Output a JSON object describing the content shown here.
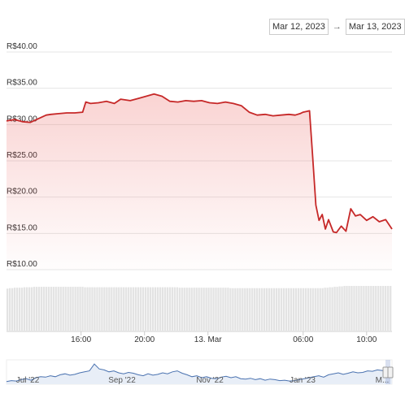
{
  "range": {
    "from": "Mar 12, 2023",
    "arrow": "→",
    "to": "Mar 13, 2023"
  },
  "chart_data": [
    {
      "type": "area",
      "title": "",
      "xlabel": "",
      "ylabel": "",
      "ylim": [
        10,
        40
      ],
      "y_ticks": [
        "R$40.00",
        "R$35.00",
        "R$30.00",
        "R$25.00",
        "R$20.00",
        "R$15.00",
        "R$10.00"
      ],
      "y_tick_values": [
        40,
        35,
        30,
        25,
        20,
        15,
        10
      ],
      "x_ticks": [
        "16:00",
        "20:00",
        "13. Mar",
        "06:00",
        "10:00"
      ],
      "x_tick_hours": [
        16,
        20,
        24,
        30,
        34
      ],
      "xlim_hours": [
        11.3,
        35.6
      ],
      "grid": true,
      "line_color": "#c62828",
      "fill_color": "#e53935",
      "series": [
        {
          "x_hours": [
            11.3,
            11.8,
            12.3,
            12.8,
            13.3,
            13.8,
            14.1,
            14.6,
            15.1,
            15.6,
            16.1,
            16.3,
            16.6,
            17.1,
            17.6,
            18.1,
            18.5,
            19.1,
            19.6,
            20.1,
            20.6,
            21.1,
            21.6,
            22.1,
            22.6,
            23.1,
            23.6,
            24.1,
            24.6,
            25.1,
            25.6,
            26.1,
            26.6,
            27.1,
            27.6,
            28.1,
            28.6,
            29.1,
            29.5,
            29.8,
            30.0,
            30.2,
            30.4,
            30.6,
            30.8,
            31.0,
            31.2,
            31.4,
            31.6,
            31.9,
            32.1,
            32.4,
            32.7,
            33.0,
            33.3,
            33.6,
            34.0,
            34.4,
            34.8,
            35.2,
            35.6
          ],
          "values": [
            30.5,
            30.7,
            30.4,
            30.3,
            30.8,
            31.3,
            31.4,
            31.5,
            31.6,
            31.6,
            31.7,
            33.1,
            32.9,
            33.0,
            33.2,
            32.9,
            33.5,
            33.3,
            33.6,
            33.9,
            34.2,
            33.9,
            33.2,
            33.1,
            33.3,
            33.2,
            33.3,
            33.0,
            32.9,
            33.1,
            32.9,
            32.6,
            31.7,
            31.3,
            31.4,
            31.2,
            31.3,
            31.4,
            31.3,
            31.5,
            31.7,
            31.8,
            31.9,
            25.5,
            18.9,
            16.8,
            17.6,
            15.6,
            16.9,
            15.2,
            15.1,
            16.0,
            15.3,
            18.4,
            17.4,
            17.6,
            16.8,
            17.3,
            16.6,
            16.9,
            15.6
          ]
        }
      ]
    },
    {
      "type": "bar",
      "title": "",
      "series": [
        {
          "name": "",
          "values": [
            0.94,
            0.95,
            0.95,
            0.96,
            0.96,
            0.96,
            0.96,
            0.97,
            0.97,
            0.97,
            0.97,
            0.98,
            0.98,
            0.98,
            0.98,
            0.98,
            0.98,
            0.98,
            0.98,
            0.98,
            0.98,
            0.98,
            0.98,
            0.98,
            0.98,
            0.98,
            0.98,
            0.98,
            0.98,
            0.98,
            0.98,
            0.98,
            0.97,
            0.97,
            0.97,
            0.97,
            0.97,
            0.97,
            0.97,
            0.97,
            0.97,
            0.97,
            0.97,
            0.97,
            0.97,
            0.97,
            0.97,
            0.97,
            0.97,
            0.97,
            0.97,
            0.97,
            0.97,
            0.97,
            0.97,
            0.97,
            0.97,
            0.97,
            0.97,
            0.97,
            0.97,
            0.97,
            0.97,
            0.97,
            0.97,
            0.97,
            0.97,
            0.97,
            0.97,
            0.97,
            0.97,
            0.96,
            0.96,
            0.96,
            0.96,
            0.96,
            0.96,
            0.96,
            0.96,
            0.96,
            0.96,
            0.96,
            0.96,
            0.96,
            0.96,
            0.96,
            0.96,
            0.96,
            0.96,
            0.96,
            0.96,
            0.96,
            0.95,
            0.95,
            0.95,
            0.95,
            0.95,
            0.95,
            0.95,
            0.95,
            0.95,
            0.95,
            0.95,
            0.95,
            0.95,
            0.95,
            0.95,
            0.95,
            0.95,
            0.95,
            0.95,
            0.95,
            0.95,
            0.95,
            0.95,
            0.95,
            0.95,
            0.95,
            0.95,
            0.95,
            0.95,
            0.95,
            0.95,
            0.95,
            0.95,
            0.95,
            0.95,
            0.95,
            0.95,
            0.95,
            0.95,
            0.96,
            0.96,
            0.97,
            0.97,
            0.98,
            0.98,
            0.99,
            0.99,
            1.0,
            1.0,
            1.0,
            1.0,
            1.0,
            1.0,
            1.0,
            1.0,
            1.0,
            1.0,
            1.0,
            1.0,
            1.0,
            1.0,
            1.0,
            1.0,
            1.0,
            1.0,
            1.0,
            1.0
          ]
        }
      ]
    },
    {
      "type": "line",
      "title": "",
      "x_ticks": [
        "Jul '22",
        "Sep '22",
        "Nov '22",
        "Jan '23",
        "M..."
      ],
      "series": [
        {
          "name": "",
          "values": [
            0.05,
            0.1,
            0.08,
            0.15,
            0.2,
            0.12,
            0.25,
            0.3,
            0.28,
            0.35,
            0.3,
            0.4,
            0.45,
            0.38,
            0.42,
            0.5,
            0.55,
            0.6,
            0.95,
            0.7,
            0.65,
            0.55,
            0.6,
            0.5,
            0.45,
            0.52,
            0.48,
            0.4,
            0.35,
            0.45,
            0.38,
            0.42,
            0.5,
            0.45,
            0.55,
            0.6,
            0.48,
            0.4,
            0.3,
            0.35,
            0.25,
            0.3,
            0.22,
            0.2,
            0.28,
            0.32,
            0.25,
            0.3,
            0.2,
            0.18,
            0.22,
            0.15,
            0.2,
            0.12,
            0.18,
            0.15,
            0.1,
            0.12,
            0.08,
            0.1,
            0.15,
            0.2,
            0.25,
            0.3,
            0.35,
            0.28,
            0.4,
            0.45,
            0.5,
            0.42,
            0.48,
            0.55,
            0.5,
            0.52,
            0.6,
            0.58,
            0.65,
            0.62,
            0.55,
            0.35
          ]
        }
      ]
    }
  ]
}
